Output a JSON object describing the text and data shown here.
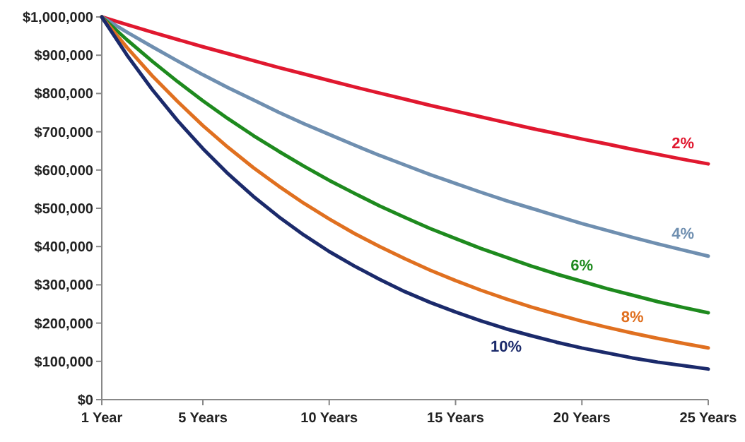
{
  "chart_data": {
    "type": "line",
    "x": [
      1,
      2,
      3,
      4,
      5,
      6,
      7,
      8,
      9,
      10,
      11,
      12,
      13,
      14,
      15,
      16,
      17,
      18,
      19,
      20,
      21,
      22,
      23,
      24,
      25
    ],
    "xlim": [
      1,
      25
    ],
    "xticks": [
      {
        "value": 1,
        "label": "1 Year"
      },
      {
        "value": 5,
        "label": "5 Years"
      },
      {
        "value": 10,
        "label": "10 Years"
      },
      {
        "value": 15,
        "label": "15 Years"
      },
      {
        "value": 20,
        "label": "20 Years"
      },
      {
        "value": 25,
        "label": "25 Years"
      }
    ],
    "ylim": [
      0,
      1000000
    ],
    "yticks": [
      {
        "value": 0,
        "label": "$0"
      },
      {
        "value": 100000,
        "label": "$100,000"
      },
      {
        "value": 200000,
        "label": "$200,000"
      },
      {
        "value": 300000,
        "label": "$300,000"
      },
      {
        "value": 400000,
        "label": "$400,000"
      },
      {
        "value": 500000,
        "label": "$500,000"
      },
      {
        "value": 600000,
        "label": "$600,000"
      },
      {
        "value": 700000,
        "label": "$700,000"
      },
      {
        "value": 800000,
        "label": "$800,000"
      },
      {
        "value": 900000,
        "label": "$900,000"
      },
      {
        "value": 1000000,
        "label": "$1,000,000"
      }
    ],
    "grid": false,
    "marker": "none",
    "line_style": "solid",
    "series": [
      {
        "name": "2%",
        "color": "#e0182f",
        "values": [
          1000000,
          980000,
          960000,
          941000,
          922000,
          904000,
          886000,
          868000,
          851000,
          834000,
          817000,
          801000,
          785000,
          769000,
          754000,
          739000,
          724000,
          709000,
          695000,
          681000,
          668000,
          654000,
          641000,
          628000,
          616000
        ]
      },
      {
        "name": "4%",
        "color": "#6f8fb0",
        "values": [
          1000000,
          960000,
          922000,
          885000,
          849000,
          815000,
          783000,
          751000,
          721000,
          693000,
          665000,
          638000,
          613000,
          588000,
          565000,
          542000,
          520000,
          500000,
          480000,
          460000,
          442000,
          424000,
          407000,
          391000,
          375000
        ]
      },
      {
        "name": "6%",
        "color": "#1e8a1e",
        "values": [
          1000000,
          940000,
          884000,
          831000,
          781000,
          734000,
          690000,
          649000,
          610000,
          573000,
          539000,
          506000,
          476000,
          447000,
          421000,
          395000,
          372000,
          349000,
          328000,
          309000,
          290000,
          273000,
          256000,
          241000,
          227000
        ]
      },
      {
        "name": "8%",
        "color": "#e07020",
        "values": [
          1000000,
          920000,
          846000,
          779000,
          716000,
          659000,
          606000,
          558000,
          513000,
          472000,
          434000,
          400000,
          368000,
          338000,
          311000,
          286000,
          263000,
          242000,
          223000,
          205000,
          189000,
          174000,
          160000,
          147000,
          135000
        ]
      },
      {
        "name": "10%",
        "color": "#1b2a6b",
        "values": [
          1000000,
          900000,
          810000,
          729000,
          656000,
          590000,
          531000,
          478000,
          430000,
          387000,
          349000,
          314000,
          282000,
          254000,
          229000,
          206000,
          185000,
          167000,
          150000,
          135000,
          122000,
          109000,
          98000,
          89000,
          80000
        ]
      }
    ]
  }
}
